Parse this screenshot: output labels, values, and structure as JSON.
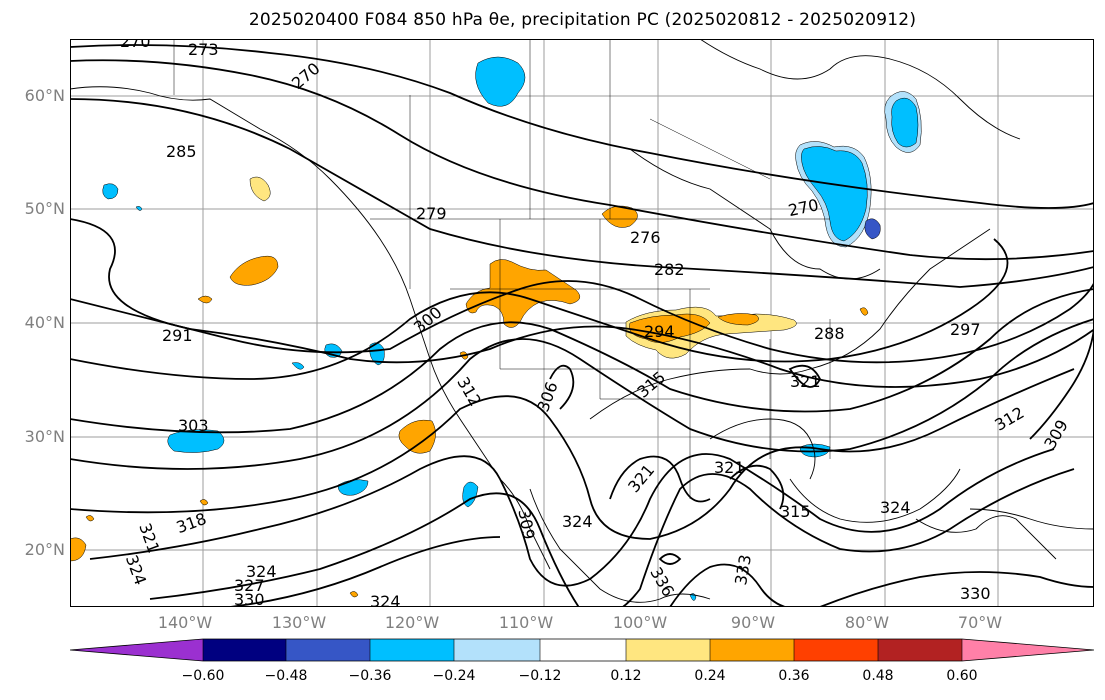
{
  "title": "2025020400 F084 850 hPa θe, precipitation PC (2025020812 - 2025020912)",
  "map": {
    "lat_labels": [
      "60°N",
      "50°N",
      "40°N",
      "30°N",
      "20°N"
    ],
    "lon_labels": [
      "140°W",
      "130°W",
      "120°W",
      "110°W",
      "100°W",
      "90°W",
      "80°W",
      "70°W"
    ],
    "contour_labels": [
      {
        "text": "270"
      },
      {
        "text": "273"
      },
      {
        "text": "270"
      },
      {
        "text": "285"
      },
      {
        "text": "279"
      },
      {
        "text": "276"
      },
      {
        "text": "282"
      },
      {
        "text": "270"
      },
      {
        "text": "291"
      },
      {
        "text": "300"
      },
      {
        "text": "294"
      },
      {
        "text": "288"
      },
      {
        "text": "297"
      },
      {
        "text": "312"
      },
      {
        "text": "306"
      },
      {
        "text": "315"
      },
      {
        "text": "321"
      },
      {
        "text": "303"
      },
      {
        "text": "321"
      },
      {
        "text": "321"
      },
      {
        "text": "324"
      },
      {
        "text": "309"
      },
      {
        "text": "318"
      },
      {
        "text": "321"
      },
      {
        "text": "324"
      },
      {
        "text": "324"
      },
      {
        "text": "327"
      },
      {
        "text": "330"
      },
      {
        "text": "324"
      },
      {
        "text": "315"
      },
      {
        "text": "312"
      },
      {
        "text": "309"
      },
      {
        "text": "324"
      },
      {
        "text": "330"
      },
      {
        "text": "333"
      },
      {
        "text": "336"
      }
    ]
  },
  "colorbar": {
    "ticks": [
      "−0.60",
      "−0.48",
      "−0.36",
      "−0.24",
      "−0.12",
      "0.12",
      "0.24",
      "0.36",
      "0.48",
      "0.60"
    ],
    "colors": [
      "#9b30d0",
      "#000080",
      "#3656c6",
      "#00bfff",
      "#b3e1fb",
      "#ffffff",
      "#ffe680",
      "#ffa500",
      "#ff4000",
      "#b22222",
      "#ff80a8"
    ]
  }
}
